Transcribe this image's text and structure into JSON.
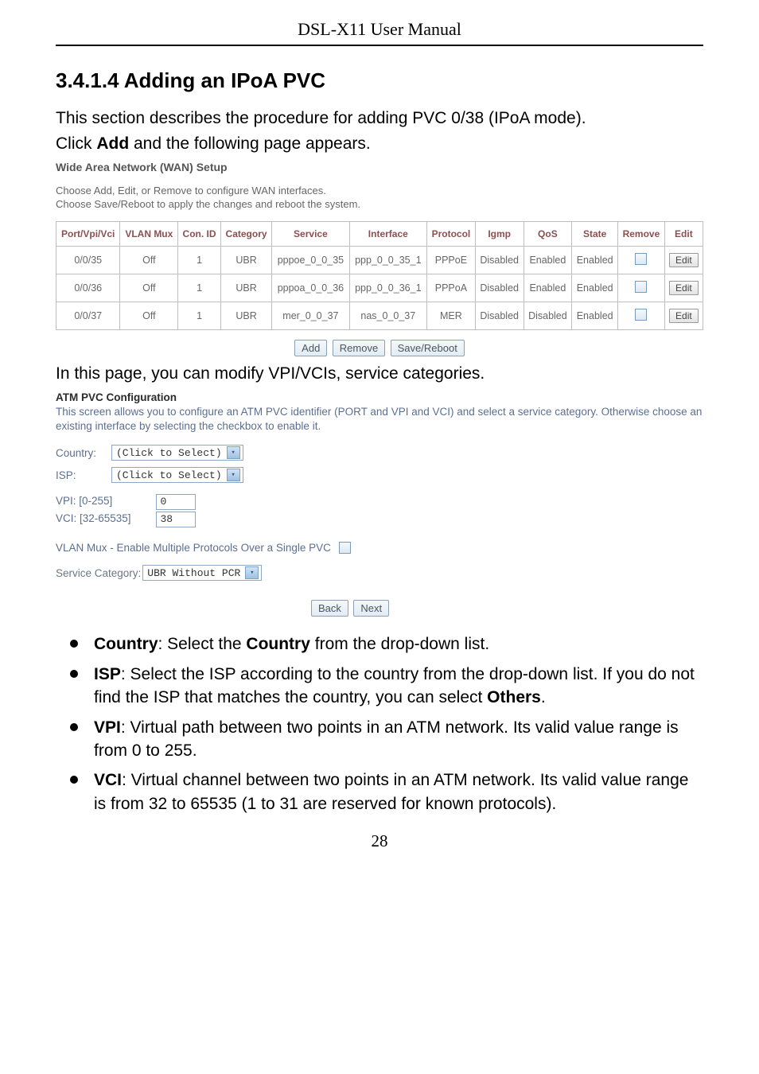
{
  "running_head": "DSL-X11 User Manual",
  "section_heading": "3.4.1.4  Adding an IPoA PVC",
  "intro1": "This section describes the procedure for adding PVC 0/38 (IPoA mode).",
  "intro2_pre": "Click ",
  "intro2_b": "Add",
  "intro2_post": " and the following page appears.",
  "wan": {
    "title": "Wide Area Network (WAN) Setup",
    "sub1": "Choose Add, Edit, or Remove to configure WAN interfaces.",
    "sub2": "Choose Save/Reboot to apply the changes and reboot the system.",
    "headers": [
      "Port/Vpi/Vci",
      "VLAN Mux",
      "Con. ID",
      "Category",
      "Service",
      "Interface",
      "Protocol",
      "Igmp",
      "QoS",
      "State",
      "Remove",
      "Edit"
    ],
    "rows": [
      {
        "port": "0/0/35",
        "vlan": "Off",
        "con": "1",
        "cat": "UBR",
        "service": "pppoe_0_0_35",
        "iface": "ppp_0_0_35_1",
        "proto": "PPPoE",
        "igmp": "Disabled",
        "qos": "Enabled",
        "state": "Enabled",
        "edit": "Edit"
      },
      {
        "port": "0/0/36",
        "vlan": "Off",
        "con": "1",
        "cat": "UBR",
        "service": "pppoa_0_0_36",
        "iface": "ppp_0_0_36_1",
        "proto": "PPPoA",
        "igmp": "Disabled",
        "qos": "Enabled",
        "state": "Enabled",
        "edit": "Edit"
      },
      {
        "port": "0/0/37",
        "vlan": "Off",
        "con": "1",
        "cat": "UBR",
        "service": "mer_0_0_37",
        "iface": "nas_0_0_37",
        "proto": "MER",
        "igmp": "Disabled",
        "qos": "Disabled",
        "state": "Enabled",
        "edit": "Edit"
      }
    ],
    "buttons": {
      "add": "Add",
      "remove": "Remove",
      "savereboot": "Save/Reboot"
    }
  },
  "mid_text": "In this page, you can modify VPI/VCIs, service categories.",
  "atm": {
    "title": "ATM PVC Configuration",
    "desc": "This screen allows you to configure an ATM PVC identifier (PORT and VPI and VCI) and select a service category. Otherwise choose an existing interface by selecting the checkbox to enable it.",
    "country_label": "Country:",
    "country_select": "(Click to Select)",
    "isp_label": "ISP:",
    "isp_select": "(Click to Select)",
    "vpi_label": "VPI: [0-255]",
    "vpi_value": "0",
    "vci_label": "VCI: [32-65535]",
    "vci_value": "38",
    "mux_label": "VLAN Mux - Enable Multiple Protocols Over a Single PVC",
    "svc_label": "Service Category:",
    "svc_value": "UBR Without PCR",
    "back": "Back",
    "next": "Next"
  },
  "bullets": {
    "country_b": "Country",
    "country_t": ": Select the ",
    "country_b2": "Country",
    "country_t2": " from the drop-down list.",
    "isp_b": "ISP",
    "isp_t": ": Select the ISP according to the country from the drop-down list. If you do not find the ISP that matches the country, you can select ",
    "isp_b2": "Others",
    "isp_t2": ".",
    "vpi_b": "VPI",
    "vpi_t": ": Virtual path between two points in an ATM network. Its valid value range is from 0 to 255.",
    "vci_b": "VCI",
    "vci_t": ": Virtual channel between two points in an ATM network. Its valid value range is from 32 to 65535 (1 to 31 are reserved for known protocols)."
  },
  "page_number": "28"
}
